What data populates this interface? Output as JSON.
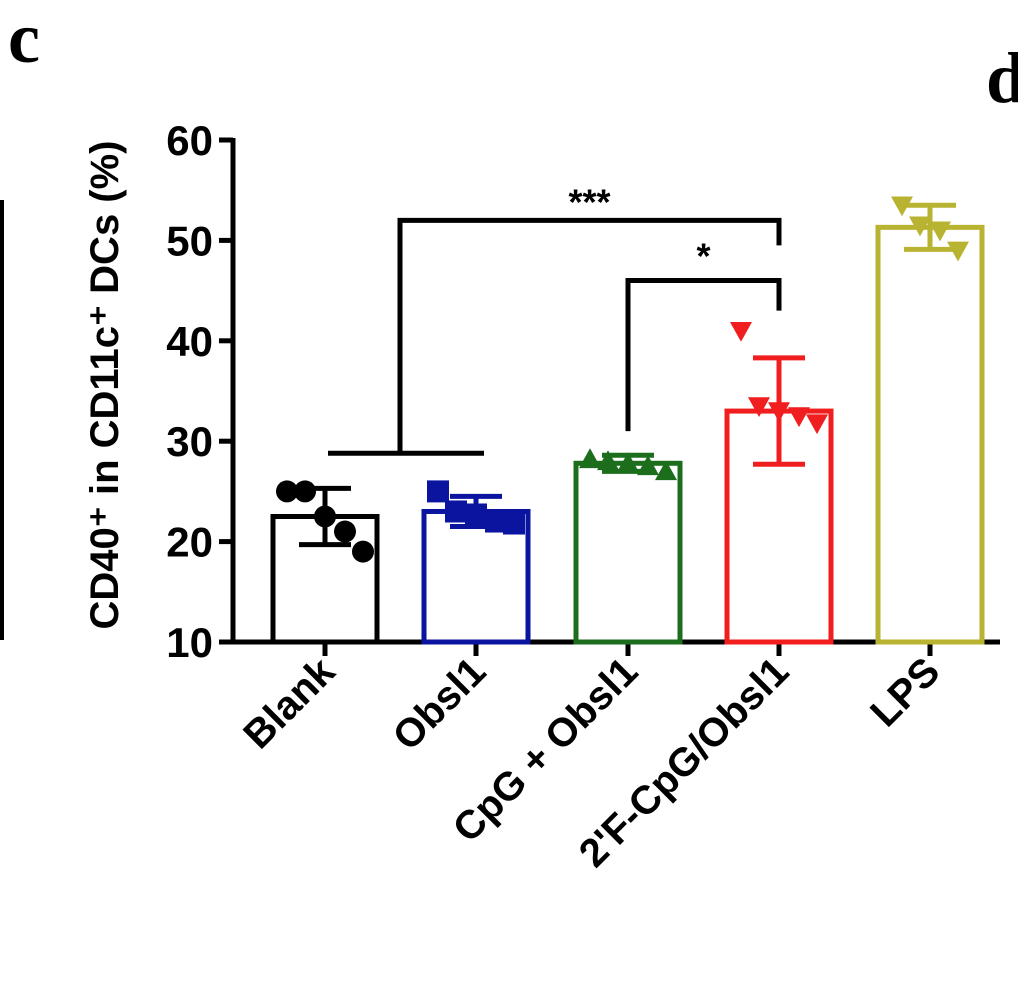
{
  "panel_letters": [
    "c",
    "d"
  ],
  "chart_data": {
    "type": "bar",
    "title": "",
    "xlabel": "",
    "ylabel": "CD40⁺ in CD11c⁺ DCs (%)",
    "ylim": [
      10,
      60
    ],
    "yticks": [
      10,
      20,
      30,
      40,
      50,
      60
    ],
    "categories": [
      "Blank",
      "Obsl1",
      "CpG + Obsl1",
      "2'F-CpG/Obsl1",
      "LPS"
    ],
    "values": [
      22.5,
      23,
      27.8,
      33,
      51.3
    ],
    "errors": [
      2.8,
      1.5,
      0.8,
      5.3,
      2.2
    ],
    "colors": [
      "#000000",
      "#0a149e",
      "#1c6e1c",
      "#f01e1e",
      "#b8b330"
    ],
    "markers": [
      "circle",
      "square",
      "triangle-up",
      "triangle-down",
      "triangle-down"
    ],
    "points": [
      [
        25,
        25,
        22.5,
        21,
        19
      ],
      [
        25,
        23,
        22.7,
        22,
        21.8
      ],
      [
        28.2,
        28,
        27.8,
        27.5,
        27
      ],
      [
        41,
        33.5,
        33,
        32.5,
        31.8
      ],
      [
        53.5,
        51.5,
        51,
        49
      ]
    ],
    "significance": [
      {
        "label": "***",
        "from": "Blank + Obsl1",
        "to": "2'F-CpG/Obsl1"
      },
      {
        "label": "*",
        "from": "CpG + Obsl1",
        "to": "2'F-CpG/Obsl1"
      }
    ]
  }
}
